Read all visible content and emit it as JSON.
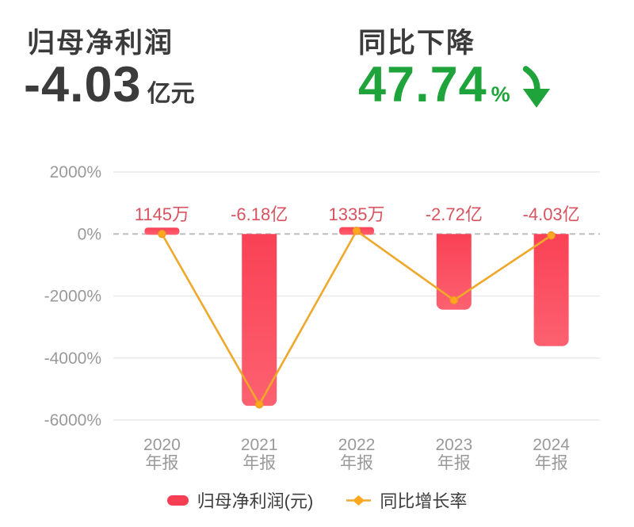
{
  "header": {
    "left": {
      "title": "归母净利润",
      "value": "-4.03",
      "unit": "亿元"
    },
    "right": {
      "title": "同比下降",
      "value": "47.74",
      "unit": "%",
      "arrow_icon": "green-curved-down-arrow"
    }
  },
  "colors": {
    "dark_text": "#3b3b3b",
    "green": "#1fa43c",
    "bar_red_top": "#fa4155",
    "bar_red_bottom": "#fc6170",
    "legend_red": "#f83e52",
    "value_label_red": "#d6535f",
    "line_orange": "#efa82b",
    "dot_orange": "#ffa81f",
    "dot_stroke": "#eb9c22",
    "grid_gray": "#e9e9e9",
    "zero_line_gray": "#bdbdbd",
    "axis_text_gray": "#999999"
  },
  "chart_data": {
    "type": "bar",
    "subtype": "bar-line-combo",
    "categories": [
      "2020年报",
      "2021年报",
      "2022年报",
      "2023年报",
      "2024年报"
    ],
    "category_lines": [
      {
        "line1": "2020",
        "line2": "年报"
      },
      {
        "line1": "2021",
        "line2": "年报"
      },
      {
        "line1": "2022",
        "line2": "年报"
      },
      {
        "line1": "2023",
        "line2": "年报"
      },
      {
        "line1": "2024",
        "line2": "年报"
      }
    ],
    "series": [
      {
        "name": "归母净利润(元)",
        "type": "bar",
        "unit": "亿元",
        "values": [
          0.1145,
          -6.18,
          0.1335,
          -2.72,
          -4.03
        ],
        "labels": [
          "1145万",
          "-6.18亿",
          "1335万",
          "-2.72亿",
          "-4.03亿"
        ]
      },
      {
        "name": "同比增长率",
        "type": "line",
        "unit": "%",
        "values": [
          0,
          -5497,
          102,
          -2137,
          -47.74
        ]
      }
    ],
    "y_ticks": [
      {
        "value": 2000,
        "label": "2000%"
      },
      {
        "value": 0,
        "label": "0%"
      },
      {
        "value": -2000,
        "label": "-2000%"
      },
      {
        "value": -4000,
        "label": "-4000%"
      },
      {
        "value": -6000,
        "label": "-6000%"
      }
    ],
    "ylim": [
      -6000,
      2000
    ],
    "grid": true,
    "zero_line_dashed": true,
    "legend_position": "bottom",
    "title": "",
    "xlabel": "",
    "ylabel": ""
  },
  "legend": {
    "bar_label": "归母净利润(元)",
    "line_label": "同比增长率"
  }
}
